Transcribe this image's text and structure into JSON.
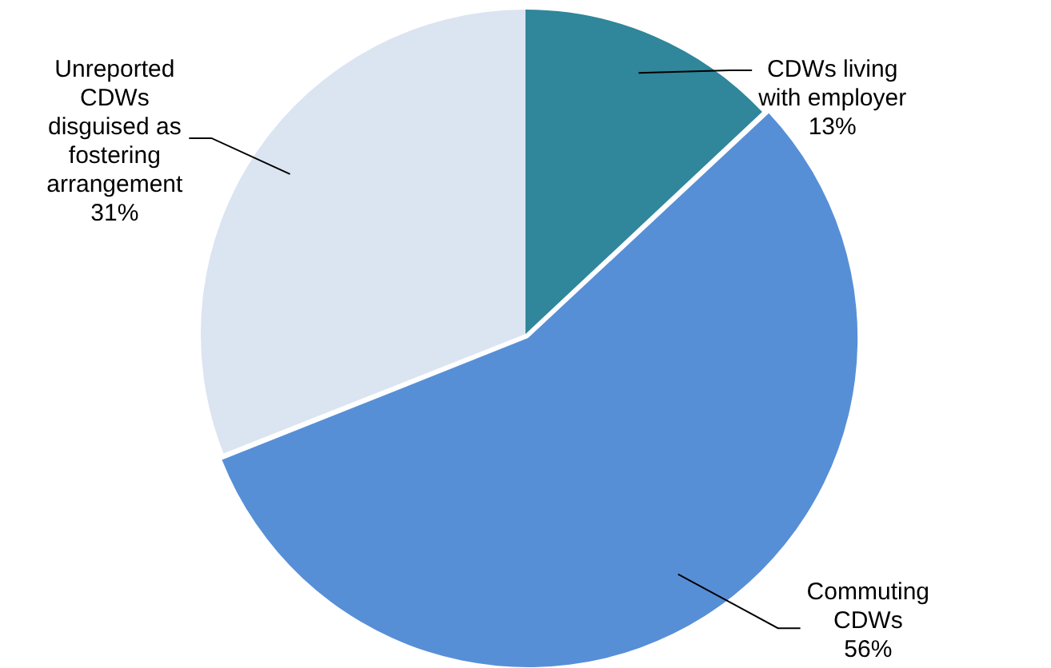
{
  "chart_data": {
    "type": "pie",
    "categories": [
      "CDWs living with employer",
      "Commuting CDWs",
      "Unreported CDWs disguised as fostering arrangement"
    ],
    "values": [
      13,
      56,
      31
    ],
    "colors": [
      "#30869a",
      "#578fd7",
      "#dbe4f1"
    ],
    "value_labels": [
      "13%",
      "56%",
      "31%"
    ],
    "legend": false
  }
}
